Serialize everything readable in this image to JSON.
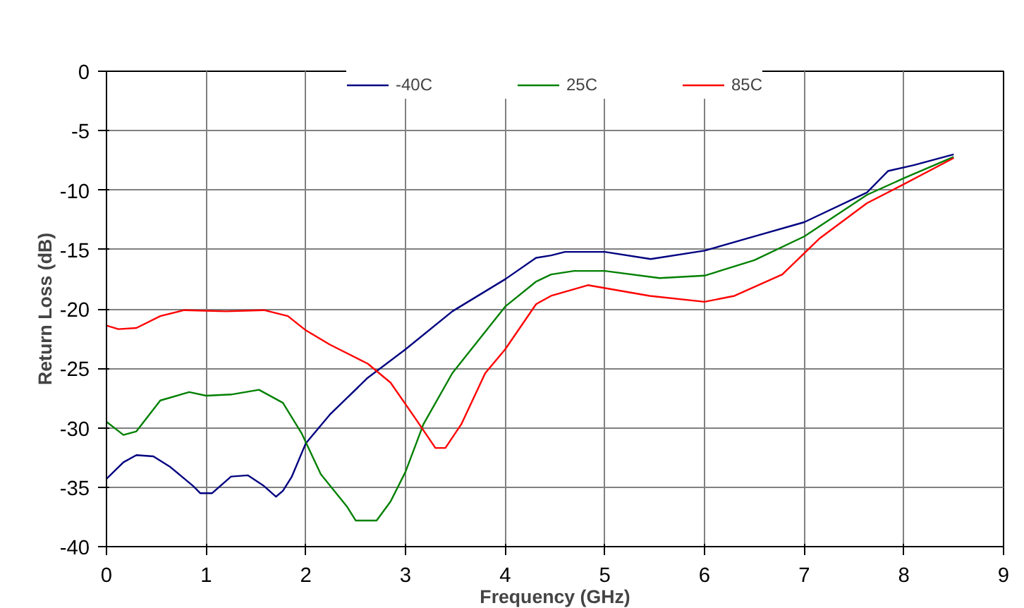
{
  "chart_data": {
    "type": "line",
    "xlabel": "Frequency (GHz)",
    "ylabel": "Return Loss (dB)",
    "xlim": [
      0,
      9
    ],
    "xticks": [
      0,
      1,
      2,
      3,
      4,
      5,
      6,
      7,
      8,
      9
    ],
    "ylim": [
      -40,
      0
    ],
    "yticks": [
      -40,
      -35,
      -30,
      -25,
      -20,
      -15,
      -10,
      -5,
      0
    ],
    "grid": true,
    "legend": "top",
    "line_style": "solid",
    "marker": "none",
    "series": [
      {
        "name": "-40C",
        "color": "#000080",
        "x": [
          0,
          0.17,
          0.3,
          0.47,
          0.64,
          0.87,
          0.94,
          1.06,
          1.25,
          1.42,
          1.58,
          1.7,
          1.77,
          1.86,
          2.0,
          2.24,
          2.62,
          3.0,
          3.47,
          4.0,
          4.31,
          4.46,
          4.6,
          5.0,
          5.46,
          6.0,
          6.5,
          7.0,
          7.63,
          7.84,
          8.1,
          8.5
        ],
        "values": [
          -34.3,
          -32.9,
          -32.3,
          -32.4,
          -33.3,
          -34.9,
          -35.5,
          -35.5,
          -34.1,
          -34.0,
          -34.9,
          -35.8,
          -35.3,
          -34.1,
          -31.3,
          -28.9,
          -25.8,
          -23.4,
          -20.2,
          -17.5,
          -15.7,
          -15.5,
          -15.2,
          -15.2,
          -15.8,
          -15.1,
          -13.9,
          -12.7,
          -10.2,
          -8.4,
          -7.9,
          -7.0
        ]
      },
      {
        "name": "25C",
        "color": "#008000",
        "x": [
          0,
          0.17,
          0.3,
          0.54,
          0.83,
          1.0,
          1.25,
          1.53,
          1.77,
          1.96,
          2.15,
          2.41,
          2.5,
          2.71,
          2.85,
          3.0,
          3.18,
          3.47,
          4.0,
          4.31,
          4.46,
          4.69,
          5.0,
          5.55,
          6.0,
          6.5,
          7.0,
          7.63,
          8.0,
          8.5
        ],
        "values": [
          -29.5,
          -30.6,
          -30.3,
          -27.7,
          -27.0,
          -27.3,
          -27.2,
          -26.8,
          -27.9,
          -30.5,
          -33.9,
          -36.6,
          -37.8,
          -37.8,
          -36.2,
          -33.7,
          -29.7,
          -25.4,
          -19.8,
          -17.7,
          -17.1,
          -16.8,
          -16.8,
          -17.4,
          -17.2,
          -15.9,
          -13.9,
          -10.4,
          -9.0,
          -7.2
        ]
      },
      {
        "name": "85C",
        "color": "#ff0000",
        "x": [
          0,
          0.12,
          0.3,
          0.54,
          0.78,
          1.2,
          1.58,
          1.82,
          2.0,
          2.24,
          2.62,
          2.85,
          3.09,
          3.3,
          3.4,
          3.56,
          3.8,
          4.0,
          4.31,
          4.46,
          4.83,
          5.45,
          6.0,
          6.3,
          6.78,
          7.15,
          7.63,
          8.0,
          8.5
        ],
        "values": [
          -21.4,
          -21.7,
          -21.6,
          -20.6,
          -20.1,
          -20.2,
          -20.1,
          -20.6,
          -21.8,
          -23.0,
          -24.6,
          -26.2,
          -29.1,
          -31.7,
          -31.7,
          -29.7,
          -25.4,
          -23.4,
          -19.6,
          -18.9,
          -18.0,
          -18.9,
          -19.4,
          -18.9,
          -17.1,
          -14.1,
          -11.1,
          -9.5,
          -7.3
        ]
      }
    ]
  }
}
